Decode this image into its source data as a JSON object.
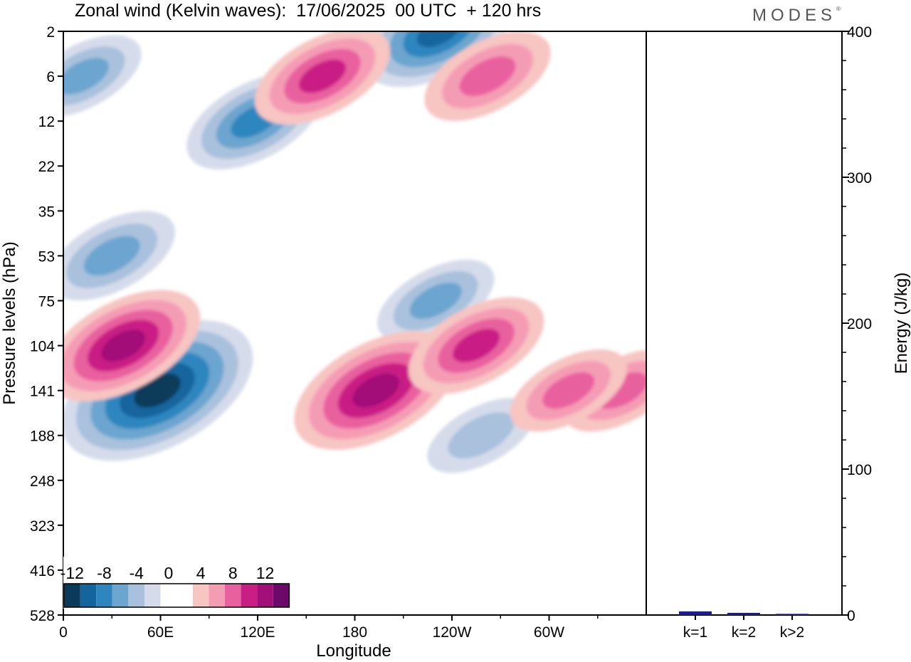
{
  "title": "Zonal wind (Kelvin waves):  17/06/2025  00 UTC  + 120 hrs",
  "brand": "MODES",
  "brand_mark": "®",
  "colors": {
    "neg": [
      "#0b3a5a",
      "#14659e",
      "#2f86bf",
      "#6ca5cf",
      "#a9c1dd",
      "#d5dbea"
    ],
    "zero": "#ffffff",
    "pos": [
      "#f7c5c2",
      "#f59cb5",
      "#e9609f",
      "#c91e84",
      "#a20f78",
      "#6b0a6b"
    ],
    "bar": "#1a1aa6"
  },
  "chart_data": [
    {
      "type": "heatmap",
      "title": "Zonal wind (Kelvin waves):  17/06/2025  00 UTC  + 120 hrs",
      "xlabel": "Longitude",
      "ylabel": "Pressure levels (hPa)",
      "x_ticks": [
        "0",
        "60E",
        "120E",
        "180",
        "120W",
        "60W"
      ],
      "x_tick_values": [
        0,
        60,
        120,
        180,
        240,
        300
      ],
      "xlim": [
        0,
        360
      ],
      "y_ticks": [
        "2",
        "6",
        "12",
        "22",
        "35",
        "53",
        "75",
        "104",
        "141",
        "188",
        "248",
        "323",
        "416",
        "528"
      ],
      "y_scale": "log-pressure (inverted)",
      "legend": {
        "labels": [
          "-12",
          "-8",
          "-4",
          "0",
          "4",
          "8",
          "12"
        ],
        "levels": [
          -12,
          -10,
          -8,
          -6,
          -4,
          -2,
          0,
          2,
          4,
          6,
          8,
          10,
          12
        ],
        "placement": "bottom-left"
      },
      "features": [
        {
          "sign": "neg",
          "lon": 58,
          "level": 141,
          "peak": -13
        },
        {
          "sign": "neg",
          "lon": 30,
          "level": 53,
          "peak": -6
        },
        {
          "sign": "neg",
          "lon": 118,
          "level": 12,
          "peak": -7
        },
        {
          "sign": "neg",
          "lon": 232,
          "level": 2,
          "peak": -9
        },
        {
          "sign": "neg",
          "lon": 230,
          "level": 75,
          "peak": -5
        },
        {
          "sign": "neg",
          "lon": 12,
          "level": 6,
          "peak": -5
        },
        {
          "sign": "neg",
          "lon": 258,
          "level": 188,
          "peak": -4
        },
        {
          "sign": "pos",
          "lon": 193,
          "level": 141,
          "peak": 10
        },
        {
          "sign": "pos",
          "lon": 37,
          "level": 104,
          "peak": 9
        },
        {
          "sign": "pos",
          "lon": 160,
          "level": 6,
          "peak": 7
        },
        {
          "sign": "pos",
          "lon": 255,
          "level": 104,
          "peak": 7
        },
        {
          "sign": "pos",
          "lon": 345,
          "level": 141,
          "peak": 5
        },
        {
          "sign": "pos",
          "lon": 312,
          "level": 141,
          "peak": 5
        },
        {
          "sign": "pos",
          "lon": 262,
          "level": 6,
          "peak": 6
        }
      ]
    },
    {
      "type": "bar",
      "categories": [
        "k=1",
        "k=2",
        "k>2"
      ],
      "values": [
        2.5,
        1.5,
        0.8
      ],
      "ylabel": "Energy (J/kg)",
      "ylim": [
        0,
        400
      ],
      "y_ticks": [
        "0",
        "100",
        "200",
        "300",
        "400"
      ]
    }
  ]
}
